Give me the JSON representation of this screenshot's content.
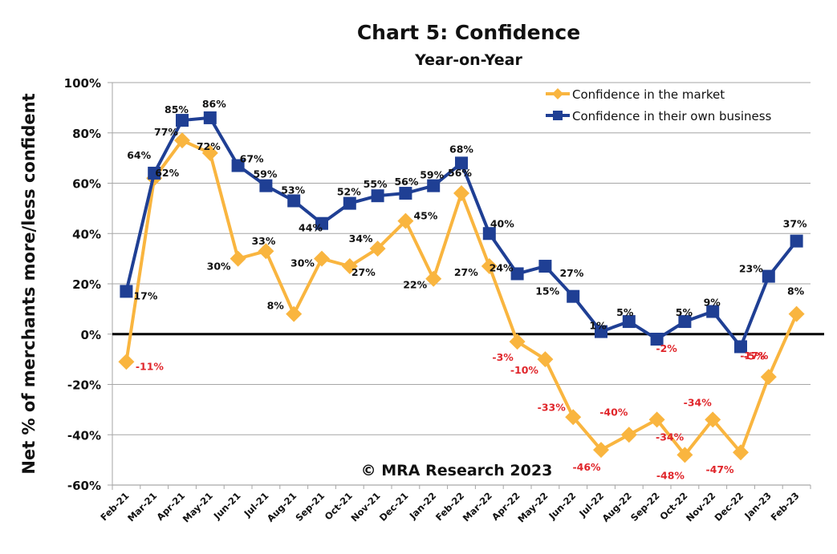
{
  "chart_data": {
    "type": "line",
    "title": "Chart 5: Confidence",
    "subtitle": "Year-on-Year",
    "xlabel": "",
    "ylabel": "Net % of merchants more/less confident",
    "ylim": [
      -60,
      100
    ],
    "yticks": [
      100,
      80,
      60,
      40,
      20,
      0,
      -20,
      -40,
      -60
    ],
    "ytick_labels": [
      "100%",
      "80%",
      "60%",
      "40%",
      "20%",
      "0%",
      "-20%",
      "-40%",
      "-60%"
    ],
    "grid": true,
    "legend_position": "top-right",
    "annotation": "© MRA Research 2023",
    "categories": [
      "Feb-21",
      "Mar-21",
      "Apr-21",
      "May-21",
      "Jun-21",
      "Jul-21",
      "Aug-21",
      "Sep-21",
      "Oct-21",
      "Nov-21",
      "Dec-21",
      "Jan-22",
      "Feb-22",
      "Mar-22",
      "Apr-22",
      "May-22",
      "Jun-22",
      "Jul-22",
      "Aug-22",
      "Sep-22",
      "Oct-22",
      "Nov-22",
      "Dec-22",
      "Jan-23",
      "Feb-23"
    ],
    "series": [
      {
        "name": "Confidence in the market",
        "color": "#F9B53F",
        "marker": "diamond",
        "values": [
          -11,
          62,
          77,
          72,
          30,
          33,
          8,
          30,
          27,
          34,
          45,
          22,
          56,
          27,
          -3,
          -10,
          -33,
          -46,
          -40,
          -34,
          -48,
          -34,
          -47,
          -17,
          8
        ]
      },
      {
        "name": "Confidence in their own business",
        "color": "#1F3F94",
        "marker": "square",
        "values": [
          17,
          64,
          85,
          86,
          67,
          59,
          53,
          44,
          52,
          55,
          56,
          59,
          68,
          40,
          24,
          27,
          15,
          1,
          5,
          -2,
          5,
          9,
          -5,
          23,
          37
        ]
      }
    ],
    "label_colors": {
      "positive": "#111111",
      "negative": "#E0262B"
    }
  }
}
